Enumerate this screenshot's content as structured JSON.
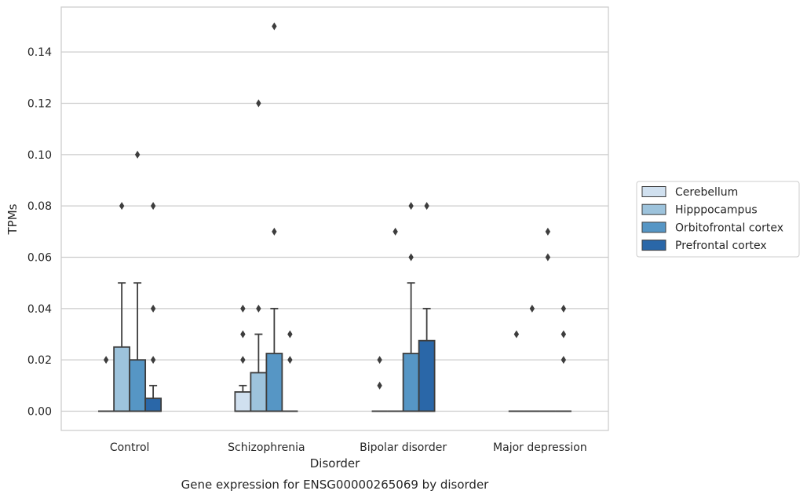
{
  "chart_data": {
    "type": "box",
    "title": "Gene expression for ENSG00000265069 by disorder",
    "xlabel": "Disorder",
    "ylabel": "TPMs",
    "ylim": [
      -0.0075,
      0.1575
    ],
    "yticks": [
      "0.00",
      "0.02",
      "0.04",
      "0.06",
      "0.08",
      "0.10",
      "0.12",
      "0.14"
    ],
    "grid": true,
    "legend_position": "right",
    "categories": [
      "Control",
      "Schizophrenia",
      "Bipolar disorder",
      "Major depression"
    ],
    "series": [
      {
        "name": "Cerebellum",
        "color": "#d0e0ef",
        "boxes": [
          {
            "q1": 0,
            "median": 0,
            "q3": 0,
            "whisker_low": 0,
            "whisker_high": 0,
            "outliers": [
              0.02
            ]
          },
          {
            "q1": 0,
            "median": 0,
            "q3": 0.0075,
            "whisker_low": 0,
            "whisker_high": 0.01,
            "outliers": [
              0.02,
              0.03,
              0.04
            ]
          },
          {
            "q1": 0,
            "median": 0,
            "q3": 0,
            "whisker_low": 0,
            "whisker_high": 0,
            "outliers": [
              0.01,
              0.02
            ]
          },
          {
            "q1": 0,
            "median": 0,
            "q3": 0,
            "whisker_low": 0,
            "whisker_high": 0,
            "outliers": [
              0.03
            ]
          }
        ]
      },
      {
        "name": "Hipppocampus",
        "color": "#9dc3dc",
        "boxes": [
          {
            "q1": 0,
            "median": 0,
            "q3": 0.025,
            "whisker_low": 0,
            "whisker_high": 0.05,
            "outliers": [
              0.08
            ]
          },
          {
            "q1": 0,
            "median": 0,
            "q3": 0.015,
            "whisker_low": 0,
            "whisker_high": 0.03,
            "outliers": [
              0.04,
              0.12
            ]
          },
          {
            "q1": 0,
            "median": 0,
            "q3": 0,
            "whisker_low": 0,
            "whisker_high": 0,
            "outliers": [
              0.07
            ]
          },
          {
            "q1": 0,
            "median": 0,
            "q3": 0,
            "whisker_low": 0,
            "whisker_high": 0,
            "outliers": [
              0.04
            ]
          }
        ]
      },
      {
        "name": "Orbitofrontal cortex",
        "color": "#5696c5",
        "boxes": [
          {
            "q1": 0,
            "median": 0,
            "q3": 0.02,
            "whisker_low": 0,
            "whisker_high": 0.05,
            "outliers": [
              0.1
            ]
          },
          {
            "q1": 0,
            "median": 0,
            "q3": 0.0225,
            "whisker_low": 0,
            "whisker_high": 0.04,
            "outliers": [
              0.07,
              0.15
            ]
          },
          {
            "q1": 0,
            "median": 0,
            "q3": 0.0225,
            "whisker_low": 0,
            "whisker_high": 0.05,
            "outliers": [
              0.06,
              0.08
            ]
          },
          {
            "q1": 0,
            "median": 0,
            "q3": 0,
            "whisker_low": 0,
            "whisker_high": 0,
            "outliers": [
              0.06,
              0.07
            ]
          }
        ]
      },
      {
        "name": "Prefrontal cortex",
        "color": "#2a67a8",
        "boxes": [
          {
            "q1": 0,
            "median": 0,
            "q3": 0.005,
            "whisker_low": 0,
            "whisker_high": 0.01,
            "outliers": [
              0.02,
              0.04,
              0.08
            ]
          },
          {
            "q1": 0,
            "median": 0,
            "q3": 0,
            "whisker_low": 0,
            "whisker_high": 0,
            "outliers": [
              0.02,
              0.03
            ]
          },
          {
            "q1": 0,
            "median": 0,
            "q3": 0.0275,
            "whisker_low": 0,
            "whisker_high": 0.04,
            "outliers": [
              0.08
            ]
          },
          {
            "q1": 0,
            "median": 0,
            "q3": 0,
            "whisker_low": 0,
            "whisker_high": 0,
            "outliers": [
              0.02,
              0.03,
              0.04
            ]
          }
        ]
      }
    ]
  }
}
